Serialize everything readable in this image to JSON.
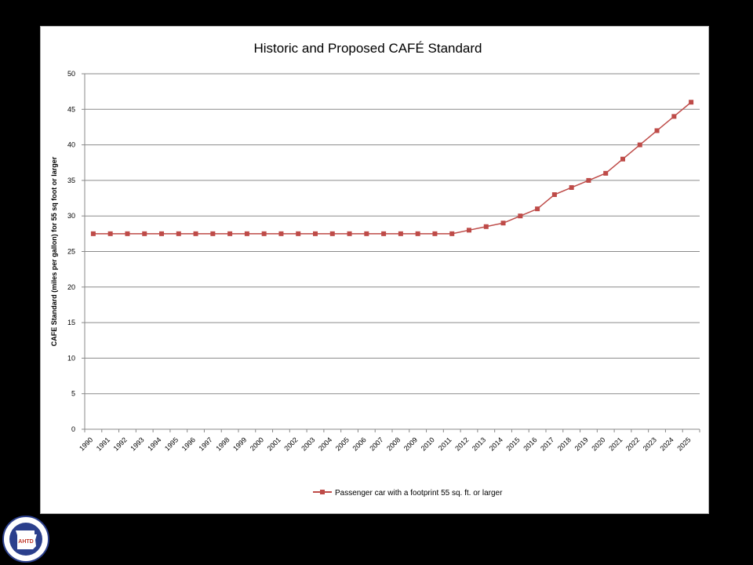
{
  "chart_data": {
    "type": "line",
    "title": "Historic and Proposed CAFÉ Standard",
    "xlabel": "",
    "ylabel": "CAFE Standard (miles per gallon) for 55 sq foot or larger",
    "ylim": [
      0,
      50
    ],
    "yticks": [
      0,
      5,
      10,
      15,
      20,
      25,
      30,
      35,
      40,
      45,
      50
    ],
    "grid": "horizontal",
    "legend": "bottom-center",
    "categories": [
      "1990",
      "1991",
      "1992",
      "1993",
      "1994",
      "1995",
      "1996",
      "1997",
      "1998",
      "1999",
      "2000",
      "2001",
      "2002",
      "2003",
      "2004",
      "2005",
      "2006",
      "2007",
      "2008",
      "2009",
      "2010",
      "2011",
      "2012",
      "2013",
      "2014",
      "2015",
      "2016",
      "2017",
      "2018",
      "2019",
      "2020",
      "2021",
      "2022",
      "2023",
      "2024",
      "2025"
    ],
    "series": [
      {
        "name": "Passenger car with a footprint 55 sq. ft. or larger",
        "color": "#be4b48",
        "marker": "square",
        "values": [
          27.5,
          27.5,
          27.5,
          27.5,
          27.5,
          27.5,
          27.5,
          27.5,
          27.5,
          27.5,
          27.5,
          27.5,
          27.5,
          27.5,
          27.5,
          27.5,
          27.5,
          27.5,
          27.5,
          27.5,
          27.5,
          27.5,
          28,
          28.5,
          29,
          30,
          31,
          33,
          34,
          35,
          36,
          38,
          40,
          42,
          44,
          46
        ]
      }
    ]
  },
  "logo": {
    "icon": "state-seal-logo",
    "text": "AHTD"
  }
}
